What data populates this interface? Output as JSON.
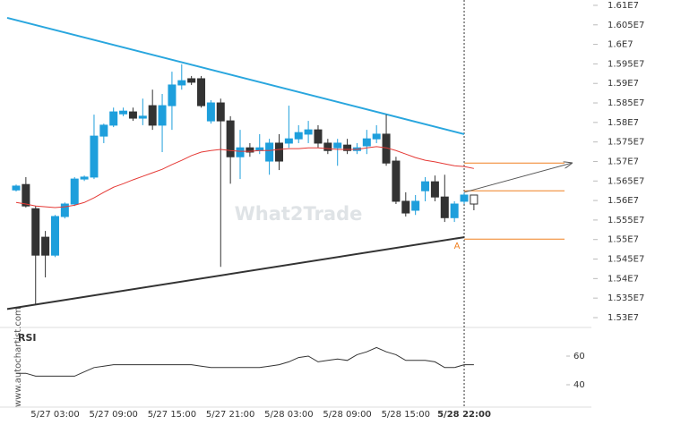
{
  "chart_data": {
    "type": "candlestick",
    "categories": [
      null,
      null,
      null,
      null,
      "5/27 03:00",
      null,
      null,
      null,
      null,
      null,
      "5/27 09:00",
      null,
      null,
      null,
      null,
      null,
      "5/27 15:00",
      null,
      null,
      null,
      null,
      null,
      "5/27 21:00",
      null,
      null,
      null,
      null,
      null,
      "5/28 03:00",
      null,
      null,
      null,
      null,
      null,
      "5/28 09:00",
      null,
      null,
      null,
      null,
      null,
      "5/28 15:00",
      null,
      null,
      null,
      null,
      null,
      "5/28 22:00",
      null
    ],
    "candles": {
      "open": [
        15627000,
        15641000,
        15579000,
        15506000,
        15460000,
        15559000,
        15591000,
        15655000,
        15660000,
        15765000,
        15793000,
        15822000,
        15827000,
        15811000,
        15843000,
        15793000,
        15843000,
        15896000,
        15912000,
        15912000,
        15804000,
        15850000,
        15804000,
        15712000,
        15735000,
        15728000,
        15701000,
        15747000,
        15747000,
        15758000,
        15770000,
        15781000,
        15747000,
        15735000,
        15742000,
        15728000,
        15740000,
        15758000,
        15770000,
        15701000,
        15598000,
        15575000,
        15625000,
        15648000,
        15609000,
        15556000,
        15598000,
        15591000
      ],
      "high": [
        15641000,
        15660000,
        15586000,
        15522000,
        15563000,
        15595000,
        15660000,
        15664000,
        15820000,
        15797000,
        15838000,
        15838000,
        15838000,
        15861000,
        15884000,
        15873000,
        15930000,
        15949000,
        15919000,
        15919000,
        15857000,
        15861000,
        15816000,
        15781000,
        15747000,
        15770000,
        15758000,
        15770000,
        15843000,
        15793000,
        15804000,
        15793000,
        15758000,
        15758000,
        15758000,
        15747000,
        15781000,
        15793000,
        15820000,
        15712000,
        15621000,
        15614000,
        15660000,
        15664000,
        15666000,
        15598000,
        15621000,
        15614000
      ],
      "low": [
        15623000,
        15582000,
        15334000,
        15403000,
        15455000,
        15554000,
        15586000,
        15650000,
        15655000,
        15747000,
        15788000,
        15816000,
        15804000,
        15793000,
        15781000,
        15724000,
        15781000,
        15884000,
        15896000,
        15838000,
        15797000,
        15430000,
        15643000,
        15655000,
        15712000,
        15719000,
        15666000,
        15678000,
        15735000,
        15747000,
        15747000,
        15735000,
        15719000,
        15689000,
        15719000,
        15719000,
        15719000,
        15747000,
        15689000,
        15591000,
        15559000,
        15563000,
        15598000,
        15598000,
        15545000,
        15545000,
        15591000,
        15575000
      ],
      "close": [
        15637000,
        15586000,
        15460000,
        15460000,
        15559000,
        15591000,
        15655000,
        15660000,
        15765000,
        15793000,
        15827000,
        15829000,
        15811000,
        15816000,
        15793000,
        15843000,
        15896000,
        15907000,
        15903000,
        15843000,
        15850000,
        15804000,
        15712000,
        15735000,
        15724000,
        15735000,
        15747000,
        15701000,
        15758000,
        15774000,
        15781000,
        15747000,
        15728000,
        15747000,
        15728000,
        15735000,
        15758000,
        15770000,
        15696000,
        15598000,
        15568000,
        15598000,
        15648000,
        15609000,
        15556000,
        15591000,
        15614000,
        15614000
      ],
      "up_color": "#1e9fdc",
      "down_color": "#333333",
      "last_candle_hollow": true
    },
    "moving_average": {
      "color": "#e53935",
      "values": [
        15595000,
        15591000,
        15586000,
        15584000,
        15582000,
        15584000,
        15588000,
        15595000,
        15607000,
        15621000,
        15634000,
        15643000,
        15653000,
        15662000,
        15671000,
        15680000,
        15692000,
        15703000,
        15715000,
        15724000,
        15728000,
        15731000,
        15728000,
        15726000,
        15726000,
        15728000,
        15728000,
        15731000,
        15733000,
        15733000,
        15735000,
        15735000,
        15733000,
        15731000,
        15731000,
        15731000,
        15735000,
        15738000,
        15735000,
        15728000,
        15719000,
        15710000,
        15703000,
        15699000,
        15694000,
        15689000,
        15687000,
        15682000
      ]
    },
    "resistance_line": [
      16068000,
      15770000
    ],
    "support_line": [
      15322000,
      15506000
    ],
    "trend_colors": {
      "resistance": "#29a6de",
      "support": "#333333"
    },
    "levels": [
      15696000,
      15625000,
      15501000
    ],
    "level_color": "#f08020",
    "forecast_arrow": [
      15621000,
      15696000
    ],
    "annotation": "A",
    "watermark": "What2Trade",
    "source": "www.autochartist.com",
    "ylim": [
      15280000,
      16110000
    ],
    "yticks": [
      {
        "value": 15300000,
        "label": "1.53E7"
      },
      {
        "value": 15350000,
        "label": "1.535E7"
      },
      {
        "value": 15400000,
        "label": "1.54E7"
      },
      {
        "value": 15450000,
        "label": "1.545E7"
      },
      {
        "value": 15500000,
        "label": "1.55E7"
      },
      {
        "value": 15550000,
        "label": "1.555E7"
      },
      {
        "value": 15600000,
        "label": "1.56E7"
      },
      {
        "value": 15650000,
        "label": "1.565E7"
      },
      {
        "value": 15700000,
        "label": "1.57E7"
      },
      {
        "value": 15750000,
        "label": "1.575E7"
      },
      {
        "value": 15800000,
        "label": "1.58E7"
      },
      {
        "value": 15850000,
        "label": "1.585E7"
      },
      {
        "value": 15900000,
        "label": "1.59E7"
      },
      {
        "value": 15950000,
        "label": "1.595E7"
      },
      {
        "value": 16000000,
        "label": "1.6E7"
      },
      {
        "value": 16050000,
        "label": "1.605E7"
      },
      {
        "value": 16100000,
        "label": "1.61E7"
      }
    ],
    "rsi": {
      "title": "RSI",
      "color": "#333333",
      "values": [
        48,
        48,
        46,
        46,
        46,
        46,
        46,
        49,
        52,
        53,
        54,
        54,
        54,
        54,
        54,
        54,
        54,
        54,
        54,
        53,
        52,
        52,
        52,
        52,
        52,
        52,
        53,
        54,
        56,
        59,
        60,
        56,
        57,
        58,
        57,
        61,
        63,
        66,
        63,
        61,
        57,
        57,
        57,
        56,
        52,
        52,
        54,
        54
      ],
      "ylim": [
        20,
        80
      ],
      "yticks": [
        40,
        60
      ]
    }
  }
}
